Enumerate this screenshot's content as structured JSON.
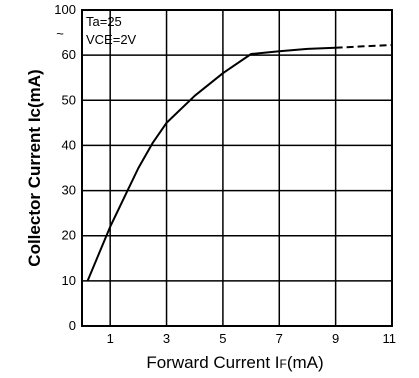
{
  "chart_data": {
    "type": "line",
    "title": "",
    "xlabel": {
      "main": "Forward Current  I",
      "sub": "F",
      "unit": "(mA)"
    },
    "ylabel": "Collector Current  Ic(mA)",
    "annotations": [
      "Ta=25",
      "VCE=2V"
    ],
    "x_ticks": [
      "1",
      "3",
      "5",
      "7",
      "9",
      "11"
    ],
    "y_ticks": [
      "0",
      "10",
      "20",
      "30",
      "40",
      "50",
      "60",
      "100"
    ],
    "y_break_symbol": "~",
    "xlim": [
      0,
      11
    ],
    "ylim": [
      0,
      100
    ],
    "grid": true,
    "series": [
      {
        "style": "solid",
        "points": [
          [
            0.2,
            10
          ],
          [
            0.6,
            16
          ],
          [
            1.0,
            22
          ],
          [
            1.5,
            28.5
          ],
          [
            2.0,
            35
          ],
          [
            2.5,
            40.5
          ],
          [
            3.0,
            45
          ],
          [
            4.0,
            51
          ],
          [
            5.0,
            56
          ],
          [
            6.0,
            61
          ],
          [
            7.0,
            63.5
          ],
          [
            8.0,
            65.5
          ],
          [
            9.0,
            66.5
          ]
        ]
      },
      {
        "style": "dashed",
        "points": [
          [
            9.0,
            66.5
          ],
          [
            10.0,
            67.8
          ],
          [
            11.0,
            69
          ]
        ]
      }
    ]
  }
}
